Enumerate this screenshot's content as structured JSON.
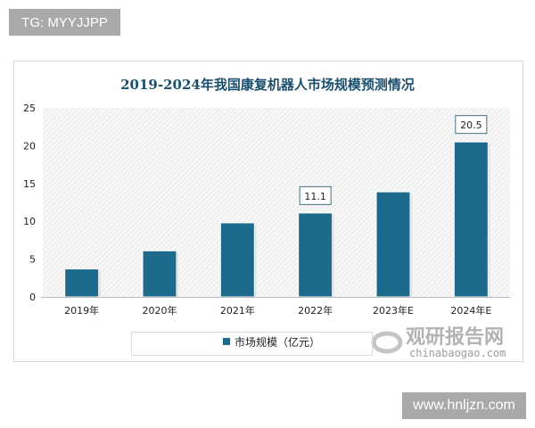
{
  "watermarks": {
    "top_left": "TG: MYYJJPP",
    "bottom_right": "www.hnljzn.com",
    "logo_cn": "观研报告网",
    "logo_en": "chinabaogao.com"
  },
  "chart_data": {
    "type": "bar",
    "title": "2019-2024年我国康复机器人市场规模预测情况",
    "categories": [
      "2019年",
      "2020年",
      "2021年",
      "2022年",
      "2023年E",
      "2024年E"
    ],
    "series": [
      {
        "name": "市场规模（亿元）",
        "values": [
          3.7,
          6.1,
          9.8,
          11.1,
          13.9,
          20.5
        ],
        "color": "#1c6a8c"
      }
    ],
    "data_labels": [
      null,
      null,
      null,
      "11.1",
      null,
      "20.5"
    ],
    "ylim": [
      0,
      25
    ],
    "yticks": [
      "0",
      "5",
      "10",
      "15",
      "20",
      "25"
    ],
    "xlabel": "",
    "ylabel": "",
    "grid": false,
    "background": "diagonal-hatch",
    "legend": "bottom"
  }
}
